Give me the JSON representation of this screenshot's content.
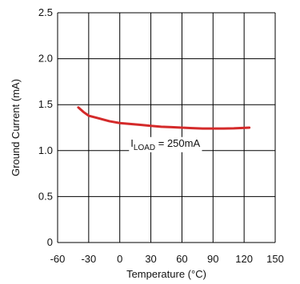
{
  "chart_data": {
    "type": "line",
    "xlabel": "Temperature (°C)",
    "ylabel": "Ground Current (mA)",
    "xlim": [
      -60,
      150
    ],
    "ylim": [
      0,
      2.5
    ],
    "x_ticks": [
      "-60",
      "-30",
      "0",
      "30",
      "60",
      "90",
      "120",
      "150"
    ],
    "y_ticks": [
      "0",
      "0.5",
      "1.0",
      "1.5",
      "2.0",
      "2.5"
    ],
    "grid": true,
    "series": [
      {
        "color": "#d42a2a",
        "x": [
          -40,
          -35,
          -30,
          -20,
          -10,
          0,
          10,
          20,
          30,
          40,
          50,
          60,
          70,
          80,
          90,
          100,
          110,
          125
        ],
        "y": [
          1.47,
          1.42,
          1.38,
          1.35,
          1.32,
          1.3,
          1.29,
          1.28,
          1.27,
          1.26,
          1.255,
          1.25,
          1.245,
          1.24,
          1.24,
          1.24,
          1.242,
          1.25
        ]
      }
    ],
    "annotation": {
      "main": "I",
      "subscript": "LOAD",
      "suffix": " = 250mA",
      "x": 44,
      "y": 1.0
    }
  }
}
